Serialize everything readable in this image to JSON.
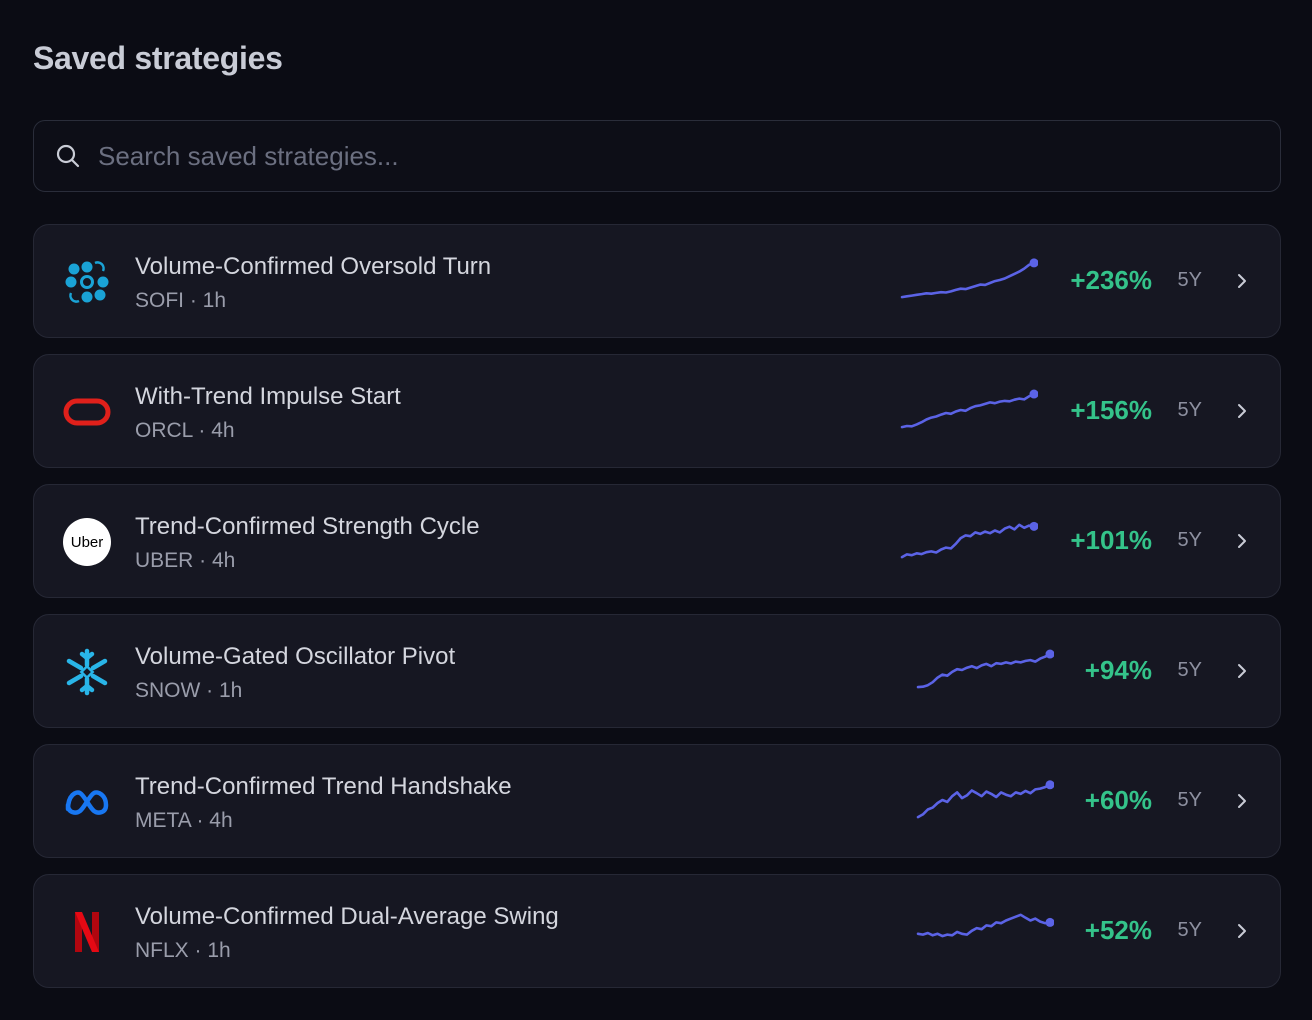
{
  "header": {
    "title": "Saved strategies"
  },
  "search": {
    "placeholder": "Search saved strategies..."
  },
  "colors": {
    "accent_line": "#5b63e6",
    "positive": "#34c38a"
  },
  "strategies": [
    {
      "name": "Volume-Confirmed Oversold Turn",
      "ticker": "SOFI",
      "interval": "1h",
      "meta": "SOFI · 1h",
      "return": "+236%",
      "period": "5Y",
      "logo_icon": "sofi-logo-icon",
      "sparkline": [
        0.05,
        0.07,
        0.09,
        0.11,
        0.13,
        0.15,
        0.14,
        0.16,
        0.18,
        0.17,
        0.2,
        0.24,
        0.27,
        0.26,
        0.3,
        0.34,
        0.38,
        0.37,
        0.42,
        0.47,
        0.5,
        0.54,
        0.6,
        0.66,
        0.72,
        0.8,
        0.9,
        0.95
      ]
    },
    {
      "name": "With-Trend Impulse Start",
      "ticker": "ORCL",
      "interval": "4h",
      "meta": "ORCL · 4h",
      "return": "+156%",
      "period": "5Y",
      "logo_icon": "oracle-logo-icon",
      "sparkline": [
        0.05,
        0.08,
        0.07,
        0.12,
        0.18,
        0.25,
        0.3,
        0.33,
        0.38,
        0.42,
        0.4,
        0.46,
        0.5,
        0.48,
        0.55,
        0.6,
        0.62,
        0.66,
        0.7,
        0.68,
        0.72,
        0.74,
        0.73,
        0.77,
        0.8,
        0.78,
        0.86,
        0.92
      ]
    },
    {
      "name": "Trend-Confirmed Strength Cycle",
      "ticker": "UBER",
      "interval": "4h",
      "meta": "UBER · 4h",
      "return": "+101%",
      "period": "5Y",
      "logo_icon": "uber-logo-icon",
      "sparkline": [
        0.05,
        0.12,
        0.1,
        0.15,
        0.13,
        0.18,
        0.2,
        0.17,
        0.25,
        0.3,
        0.28,
        0.4,
        0.55,
        0.62,
        0.6,
        0.7,
        0.66,
        0.72,
        0.68,
        0.75,
        0.7,
        0.8,
        0.85,
        0.78,
        0.9,
        0.82,
        0.88,
        0.86
      ]
    },
    {
      "name": "Volume-Gated Oscillator Pivot",
      "ticker": "SNOW",
      "interval": "1h",
      "meta": "SNOW · 1h",
      "return": "+94%",
      "period": "5Y",
      "logo_icon": "snowflake-logo-icon",
      "sparkline": [
        0.05,
        0.06,
        0.1,
        0.18,
        0.3,
        0.38,
        0.35,
        0.45,
        0.52,
        0.5,
        0.56,
        0.6,
        0.55,
        0.62,
        0.66,
        0.6,
        0.68,
        0.66,
        0.7,
        0.67,
        0.72,
        0.7,
        0.74,
        0.76,
        0.72,
        0.8,
        0.85,
        0.92
      ]
    },
    {
      "name": "Trend-Confirmed Trend Handshake",
      "ticker": "META",
      "interval": "4h",
      "meta": "META · 4h",
      "return": "+60%",
      "period": "5Y",
      "logo_icon": "meta-logo-icon",
      "sparkline": [
        0.05,
        0.12,
        0.25,
        0.3,
        0.42,
        0.5,
        0.45,
        0.6,
        0.7,
        0.55,
        0.62,
        0.75,
        0.68,
        0.6,
        0.72,
        0.66,
        0.58,
        0.7,
        0.64,
        0.6,
        0.7,
        0.66,
        0.74,
        0.68,
        0.78,
        0.8,
        0.84,
        0.9
      ]
    },
    {
      "name": "Volume-Confirmed Dual-Average Swing",
      "ticker": "NFLX",
      "interval": "1h",
      "meta": "NFLX · 1h",
      "return": "+52%",
      "period": "5Y",
      "logo_icon": "netflix-logo-icon",
      "sparkline": [
        0.4,
        0.38,
        0.42,
        0.36,
        0.4,
        0.34,
        0.38,
        0.36,
        0.45,
        0.4,
        0.38,
        0.48,
        0.55,
        0.52,
        0.62,
        0.6,
        0.7,
        0.68,
        0.75,
        0.8,
        0.85,
        0.9,
        0.82,
        0.75,
        0.8,
        0.72,
        0.68,
        0.7
      ]
    }
  ]
}
